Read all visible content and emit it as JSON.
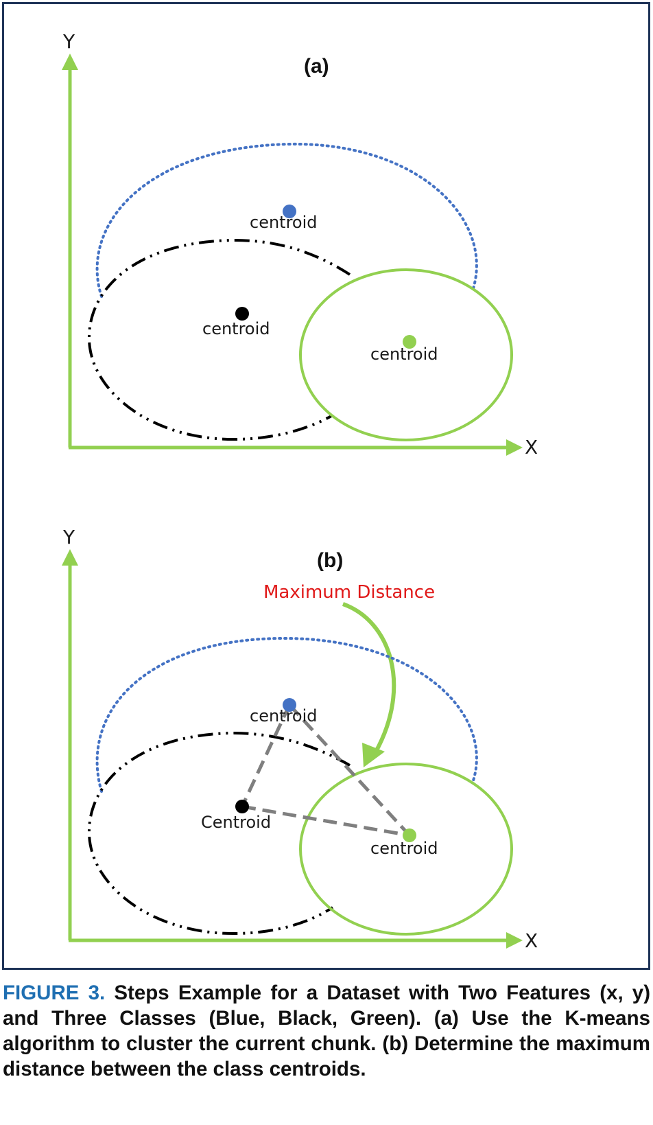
{
  "panels": [
    {
      "label": "(a)",
      "y_axis": "Y",
      "x_axis": "X",
      "centroids": [
        {
          "class": "Blue",
          "label": "centroid",
          "color": "#4472c4"
        },
        {
          "class": "Black",
          "label": "centroid",
          "color": "#000000"
        },
        {
          "class": "Green",
          "label": "centroid",
          "color": "#92d050"
        }
      ]
    },
    {
      "label": "(b)",
      "y_axis": "Y",
      "x_axis": "X",
      "annotation": "Maximum Distance",
      "centroids": [
        {
          "class": "Blue",
          "label": "centroid",
          "color": "#4472c4"
        },
        {
          "class": "Black",
          "label": "Centroid",
          "color": "#000000"
        },
        {
          "class": "Green",
          "label": "centroid",
          "color": "#92d050"
        }
      ]
    }
  ],
  "colors": {
    "axis": "#92d050",
    "blue_cluster": "#4472c4",
    "black_cluster": "#000000",
    "green_cluster": "#92d050",
    "distance_line": "#7f7f7f",
    "annotation_text": "#e01818",
    "caption_label": "#1f6fb2",
    "frame": "#1f3458"
  },
  "caption": {
    "label": "FIGURE 3.",
    "text": "Steps Example for a Dataset with Two Features (x, y) and Three Classes (Blue, Black, Green). (a) Use the K-means algorithm to cluster the current chunk. (b) Determine the maximum distance between the class centroids."
  }
}
